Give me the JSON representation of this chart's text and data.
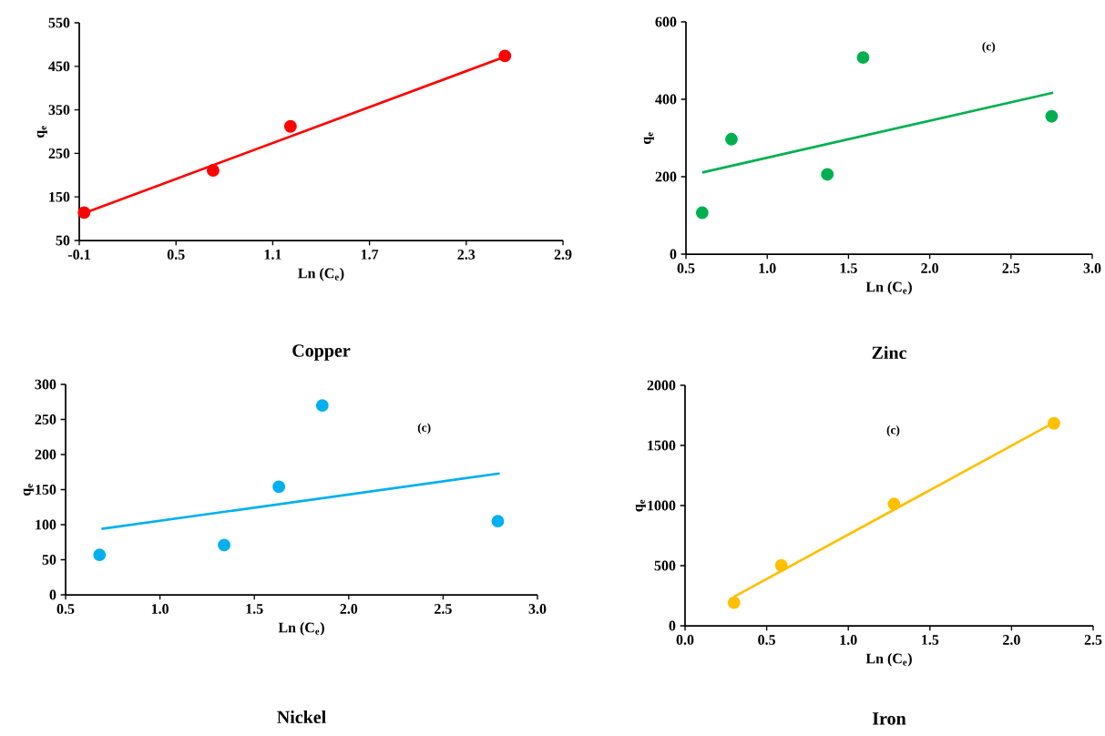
{
  "chart_data": [
    {
      "type": "scatter",
      "title": "Copper",
      "xlabel": "Ln (C$_{e}$)",
      "ylabel": "q$_{e}$",
      "xlim": [
        -0.1,
        2.9
      ],
      "xticks": [
        -0.1,
        0.5,
        1.1,
        1.7,
        2.3,
        2.9
      ],
      "ylim": [
        50,
        550
      ],
      "yticks": [
        50,
        150,
        250,
        350,
        450,
        550
      ],
      "series": [
        {
          "color": "#ff0000",
          "marker": "circle",
          "x": [
            -0.07,
            0.73,
            1.21,
            2.54
          ],
          "values": [
            114,
            211,
            312,
            474
          ]
        },
        {
          "type": "line",
          "color": "#ff0000",
          "x": [
            -0.07,
            2.54
          ],
          "values": [
            113,
            472
          ]
        }
      ]
    },
    {
      "type": "scatter",
      "title": "Zinc",
      "xlabel": "Ln (C$_{e}$)",
      "ylabel": "q$_{e}$",
      "annotations": [
        "(c)"
      ],
      "xlim": [
        0.5,
        3.0
      ],
      "xticks": [
        0.5,
        {
          "value": 1,
          "label": "1.0"
        },
        1.5,
        {
          "value": 2,
          "label": "2.0"
        },
        2.5,
        {
          "value": 3,
          "label": "3.0"
        }
      ],
      "ylim": [
        0,
        600
      ],
      "yticks": [
        0,
        200,
        400,
        600
      ],
      "series": [
        {
          "color": "#00b050",
          "marker": "circle",
          "x": [
            0.6,
            0.78,
            1.37,
            1.59,
            2.75
          ],
          "values": [
            107,
            297,
            206,
            508,
            356
          ]
        },
        {
          "type": "line",
          "color": "#00b050",
          "x": [
            0.6,
            2.76
          ],
          "values": [
            211,
            417
          ]
        }
      ]
    },
    {
      "type": "scatter",
      "title": "Nickel",
      "xlabel": "Ln (C$_{e}$)",
      "ylabel": "q$_{e}$",
      "annotations": [
        "(c)"
      ],
      "xlim": [
        0.5,
        3.0
      ],
      "xticks": [
        0.5,
        {
          "value": 1,
          "label": "1.0"
        },
        1.5,
        {
          "value": 2,
          "label": "2.0"
        },
        2.5,
        {
          "value": 3,
          "label": "3.0"
        }
      ],
      "ylim": [
        0,
        300
      ],
      "yticks": [
        0,
        50,
        100,
        150,
        200,
        250,
        300
      ],
      "series": [
        {
          "color": "#00b0f0",
          "marker": "circle",
          "x": [
            0.68,
            1.34,
            1.63,
            1.86,
            2.79
          ],
          "values": [
            57,
            71,
            154,
            270,
            105
          ]
        },
        {
          "type": "line",
          "color": "#00b0f0",
          "x": [
            0.69,
            2.8
          ],
          "values": [
            94,
            173
          ]
        }
      ]
    },
    {
      "type": "scatter",
      "title": "Iron",
      "xlabel": "Ln (C$_{e}$)",
      "ylabel": "q$_{e}$",
      "annotations": [
        "(c)"
      ],
      "xlim": [
        0,
        2.5
      ],
      "xticks": [
        {
          "value": 0,
          "label": "0.0"
        },
        0.5,
        {
          "value": 1,
          "label": "1.0"
        },
        1.5,
        {
          "value": 2,
          "label": "2.0"
        },
        2.5
      ],
      "ylim": [
        0,
        2000
      ],
      "yticks": [
        0,
        500,
        1000,
        1500,
        2000
      ],
      "series": [
        {
          "color": "#ffc000",
          "marker": "circle",
          "x": [
            0.3,
            0.59,
            1.28,
            2.26
          ],
          "values": [
            192,
            502,
            1013,
            1684
          ]
        },
        {
          "type": "line",
          "color": "#ffc000",
          "x": [
            0.3,
            2.26
          ],
          "values": [
            241,
            1690
          ]
        }
      ]
    }
  ]
}
